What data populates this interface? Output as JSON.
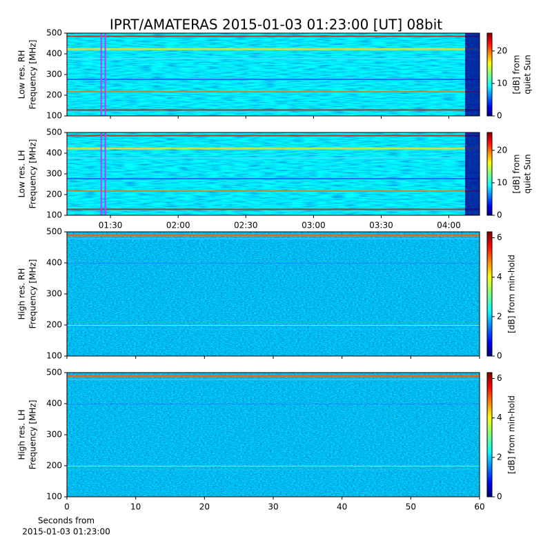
{
  "title": "IPRT/AMATERAS 2015-01-03 01:23:00 [UT]   08bit",
  "xlabel": [
    "Seconds from",
    "2015-01-03 01:23:00"
  ],
  "chart_data": [
    {
      "type": "spectrogram",
      "ylabel": [
        "Low res. RH",
        "Frequency [MHz]"
      ],
      "xlim": [
        70.7,
        253.6
      ],
      "xticks": [
        90,
        120,
        150,
        180,
        210,
        240
      ],
      "xticklabels": false,
      "highlight_x": [
        85.9,
        87.7
      ],
      "highlight_color": "#b040ff",
      "ylim": [
        100,
        500
      ],
      "yticks": [
        100,
        200,
        300,
        400,
        500
      ],
      "colorbar": {
        "label": [
          "[dB] from",
          "quiet Sun"
        ],
        "lim": [
          0,
          25.5
        ],
        "ticks": [
          0,
          10,
          20
        ]
      }
    },
    {
      "type": "spectrogram",
      "ylabel": [
        "Low res. LH",
        "Frequency [MHz]"
      ],
      "xlim": [
        70.7,
        253.6
      ],
      "xticks": [
        {
          "value": 90,
          "label": "01:30"
        },
        {
          "value": 120,
          "label": "02:00"
        },
        {
          "value": 150,
          "label": "02:30"
        },
        {
          "value": 180,
          "label": "03:00"
        },
        {
          "value": 210,
          "label": "03:30"
        },
        {
          "value": 240,
          "label": "04:00"
        }
      ],
      "xticklabels": true,
      "highlight_x": [
        85.9,
        87.7
      ],
      "highlight_color": "#b040ff",
      "ylim": [
        100,
        500
      ],
      "yticks": [
        100,
        200,
        300,
        400,
        500
      ],
      "colorbar": {
        "label": [
          "[dB] from",
          "quiet Sun"
        ],
        "lim": [
          0,
          25.5
        ],
        "ticks": [
          0,
          10,
          20
        ]
      }
    },
    {
      "type": "spectrogram",
      "ylabel": [
        "High res. RH",
        "Frequency [MHz]"
      ],
      "xlim": [
        0,
        60
      ],
      "xticks": [
        0,
        10,
        20,
        30,
        40,
        50,
        60
      ],
      "xticklabels": false,
      "ylim": [
        100,
        500
      ],
      "yticks": [
        100,
        200,
        300,
        400,
        500
      ],
      "colorbar": {
        "label": [
          "[dB] from min-hold"
        ],
        "lim": [
          0,
          6.3
        ],
        "ticks": [
          0,
          2,
          4,
          6
        ]
      }
    },
    {
      "type": "spectrogram",
      "ylabel": [
        "High res. LH",
        "Frequency [MHz]"
      ],
      "xlim": [
        0,
        60
      ],
      "xticks": [
        0,
        10,
        20,
        30,
        40,
        50,
        60
      ],
      "xticklabels": true,
      "ylim": [
        100,
        500
      ],
      "yticks": [
        100,
        200,
        300,
        400,
        500
      ],
      "colorbar": {
        "label": [
          "[dB] from min-hold"
        ],
        "lim": [
          0,
          6.3
        ],
        "ticks": [
          0,
          2,
          4,
          6
        ]
      }
    }
  ]
}
